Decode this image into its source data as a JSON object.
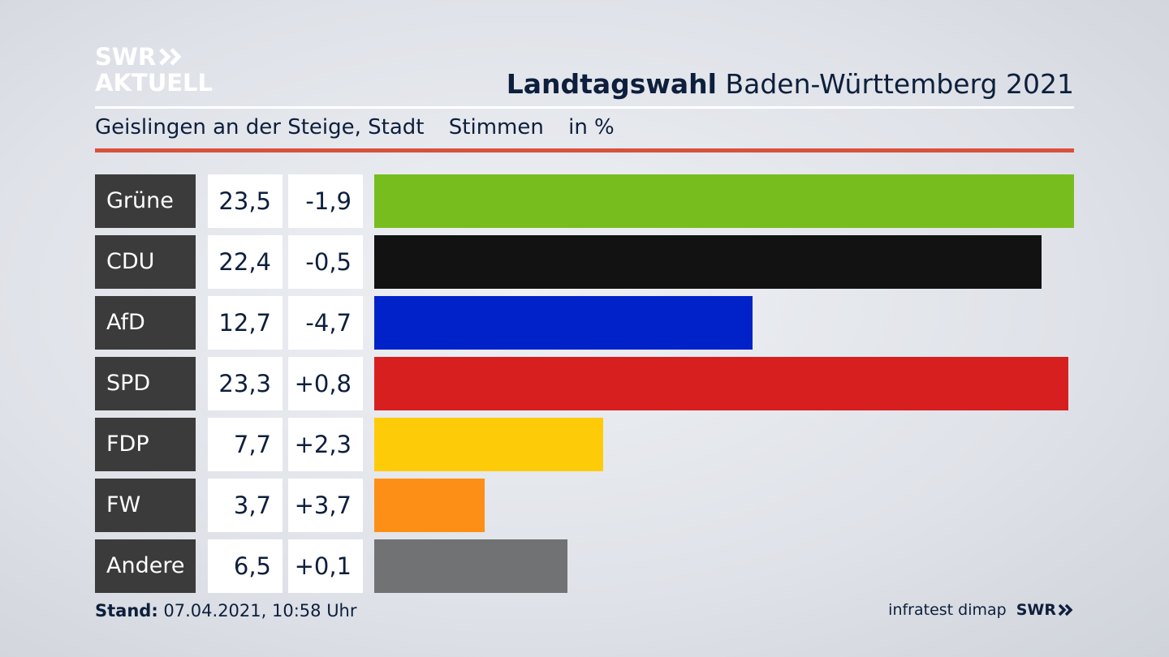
{
  "logo": {
    "line1": "SWR",
    "line2": "AKTUELL"
  },
  "header": {
    "title_bold": "Landtagswahl",
    "title_rest": "Baden-Württemberg 2021"
  },
  "subheader": {
    "location": "Geislingen an der Steige, Stadt",
    "measure": "Stimmen",
    "unit": "in %"
  },
  "colors": {
    "accent_rule": "#d8513b",
    "label_bg": "#3b3b3b"
  },
  "chart_data": {
    "type": "bar",
    "orientation": "horizontal",
    "categories": [
      "Grüne",
      "CDU",
      "AfD",
      "SPD",
      "FDP",
      "FW",
      "Andere"
    ],
    "values": [
      23.5,
      22.4,
      12.7,
      23.3,
      7.7,
      3.7,
      6.5
    ],
    "value_labels": [
      "23,5",
      "22,4",
      "12,7",
      "23,3",
      "7,7",
      "3,7",
      "6,5"
    ],
    "diff_labels": [
      "-1,9",
      "-0,5",
      "-4,7",
      "+0,8",
      "+2,3",
      "+3,7",
      "+0,1"
    ],
    "colors": [
      "#77bd1e",
      "#121212",
      "#0022c8",
      "#d81f1f",
      "#fecb09",
      "#fd8f16",
      "#707274"
    ],
    "xlim": [
      0,
      23.5
    ]
  },
  "footer": {
    "stand_label": "Stand:",
    "stand_value": "07.04.2021, 10:58 Uhr",
    "source": "infratest dimap",
    "brand": "SWR"
  }
}
